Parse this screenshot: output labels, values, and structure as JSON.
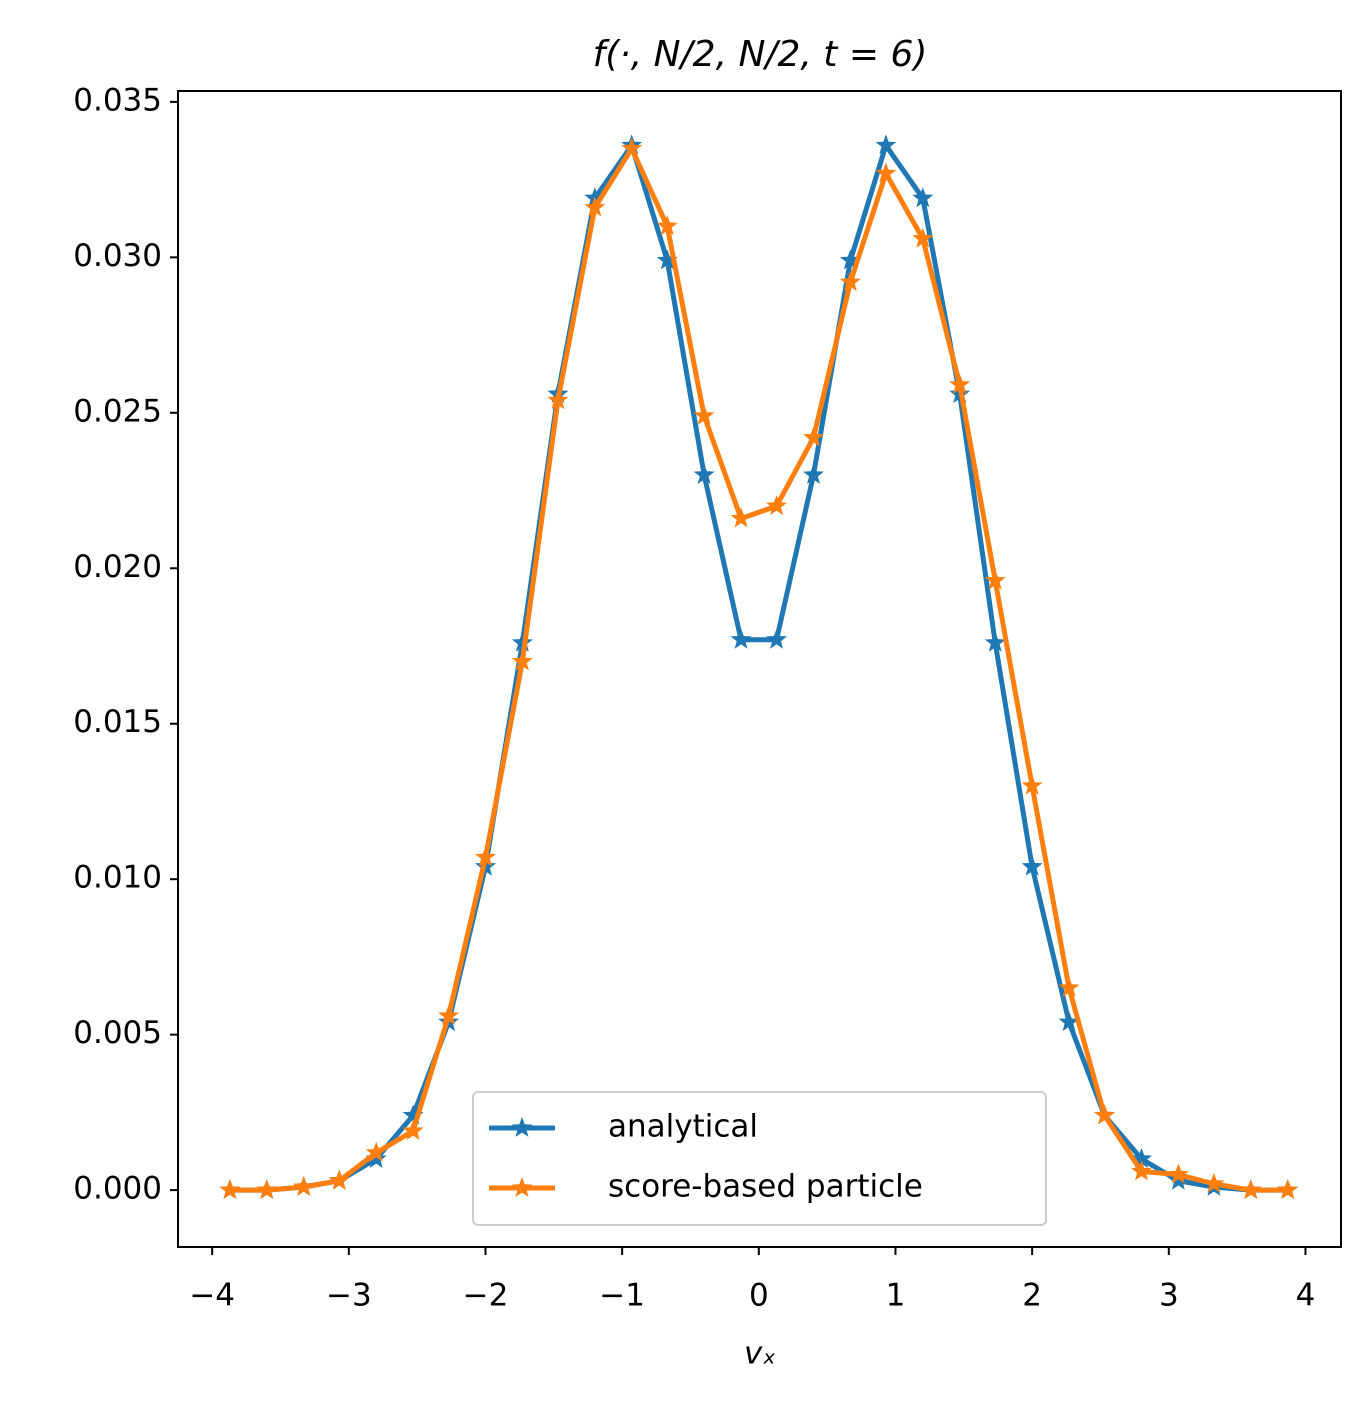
{
  "chart_data": {
    "type": "line",
    "title": "f(·, N/2, N/2, t = 6)",
    "xlabel": "vₓ",
    "x": [
      -3.87,
      -3.6,
      -3.33,
      -3.07,
      -2.8,
      -2.53,
      -2.27,
      -2.0,
      -1.73,
      -1.47,
      -1.2,
      -0.93,
      -0.67,
      -0.4,
      -0.13,
      0.13,
      0.4,
      0.67,
      0.93,
      1.2,
      1.47,
      1.73,
      2.0,
      2.27,
      2.53,
      2.8,
      3.07,
      3.33,
      3.6,
      3.87
    ],
    "series": [
      {
        "name": "analytical",
        "color": "#1f77b4",
        "values": [
          0.0,
          0.0,
          0.0001,
          0.0003,
          0.001,
          0.0024,
          0.0054,
          0.0104,
          0.0176,
          0.0256,
          0.0319,
          0.0336,
          0.0299,
          0.023,
          0.0177,
          0.0177,
          0.023,
          0.0299,
          0.0336,
          0.0319,
          0.0256,
          0.0176,
          0.0104,
          0.0054,
          0.0024,
          0.001,
          0.0003,
          0.0001,
          0.0,
          0.0
        ]
      },
      {
        "name": "score-based particle",
        "color": "#ff7f0e",
        "values": [
          0.0,
          0.0,
          0.0001,
          0.0003,
          0.0012,
          0.0019,
          0.0056,
          0.0107,
          0.017,
          0.0254,
          0.0316,
          0.0335,
          0.031,
          0.0249,
          0.0216,
          0.022,
          0.0242,
          0.0292,
          0.0327,
          0.0306,
          0.0259,
          0.0196,
          0.013,
          0.0065,
          0.0024,
          0.0006,
          0.0005,
          0.0002,
          0.0,
          0.0
        ]
      }
    ],
    "xlim": [
      -4.25,
      4.26
    ],
    "ylim": [
      -0.00183,
      0.03535
    ],
    "xticks": [
      {
        "value": -4,
        "label": "−4"
      },
      {
        "value": -3,
        "label": "−3"
      },
      {
        "value": -2,
        "label": "−2"
      },
      {
        "value": -1,
        "label": "−1"
      },
      0,
      1,
      2,
      3,
      4
    ],
    "yticks": [
      {
        "value": 0,
        "label": "0.000"
      },
      {
        "value": 0.005,
        "label": "0.005"
      },
      {
        "value": 0.01,
        "label": "0.010"
      },
      {
        "value": 0.015,
        "label": "0.015"
      },
      {
        "value": 0.02,
        "label": "0.020"
      },
      {
        "value": 0.025,
        "label": "0.025"
      },
      {
        "value": 0.03,
        "label": "0.030"
      },
      {
        "value": 0.035,
        "label": "0.035"
      }
    ],
    "legend": "lower center",
    "grid": false
  }
}
